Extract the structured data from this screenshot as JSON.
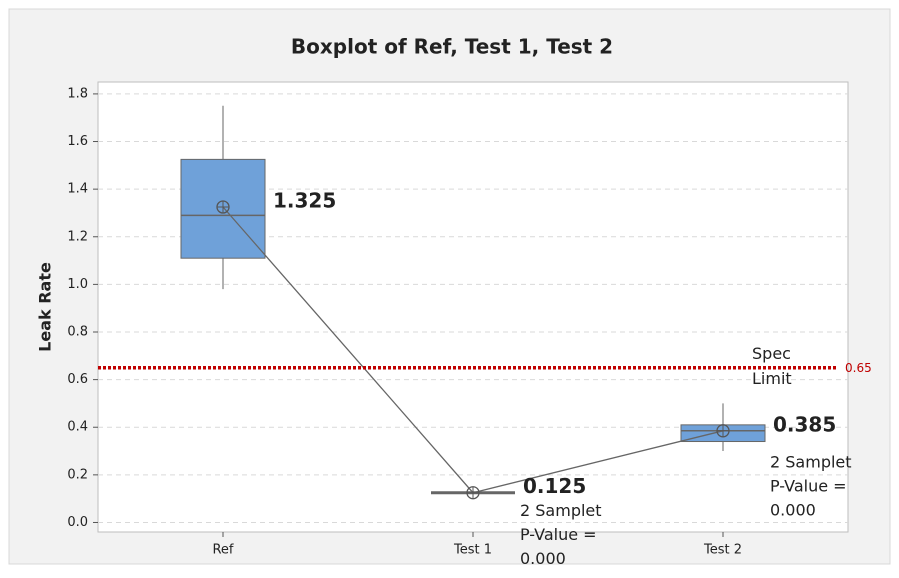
{
  "chart_data": {
    "type": "box",
    "title": "Boxplot of Ref, Test 1, Test 2",
    "ylabel": "Leak Rate",
    "categories": [
      "Ref",
      "Test 1",
      "Test 2"
    ],
    "boxes": [
      {
        "low": 0.98,
        "q1": 1.11,
        "median": 1.29,
        "q3": 1.525,
        "high": 1.75,
        "mean": 1.325
      },
      {
        "low": 0.125,
        "q1": 0.125,
        "median": 0.125,
        "q3": 0.125,
        "high": 0.125,
        "mean": 0.125
      },
      {
        "low": 0.3,
        "q1": 0.34,
        "median": 0.385,
        "q3": 0.41,
        "high": 0.5,
        "mean": 0.385
      }
    ],
    "box_color": "#6fa1d9",
    "connect_means": true,
    "annotations": [
      {
        "lines": [
          "2 Samplet",
          "P-Value =",
          "0.000"
        ]
      },
      {
        "lines": [
          "2 Samplet",
          "P-Value =",
          "0.000"
        ]
      }
    ],
    "reference_line": {
      "value": 0.65,
      "label": [
        "Spec",
        "Limit"
      ],
      "color": "#c00000"
    },
    "ylim": [
      -0.04,
      1.85
    ],
    "yticks": [
      {
        "value": 0,
        "label": "0.0"
      },
      0.2,
      0.4,
      0.6,
      0.8,
      {
        "value": 1,
        "label": "1.0"
      },
      1.2,
      1.4,
      1.6,
      1.8
    ],
    "grid": true
  }
}
